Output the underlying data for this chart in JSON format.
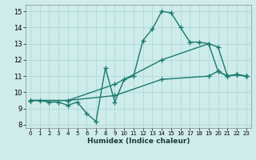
{
  "background_color": "#ceecea",
  "grid_color": "#aed8d5",
  "line_color": "#1a7a6e",
  "marker": "+",
  "markersize": 4,
  "linewidth": 1.0,
  "xlabel": "Humidex (Indice chaleur)",
  "xlim": [
    -0.5,
    23.5
  ],
  "ylim": [
    7.8,
    15.4
  ],
  "xticks": [
    0,
    1,
    2,
    3,
    4,
    5,
    6,
    7,
    8,
    9,
    10,
    11,
    12,
    13,
    14,
    15,
    16,
    17,
    18,
    19,
    20,
    21,
    22,
    23
  ],
  "yticks": [
    8,
    9,
    10,
    11,
    12,
    13,
    14,
    15
  ],
  "series": [
    {
      "x": [
        0,
        1,
        2,
        3,
        4,
        5,
        6,
        7,
        8,
        9,
        10,
        11,
        12,
        13,
        14,
        15,
        16,
        17,
        18,
        19,
        20,
        21,
        22,
        23
      ],
      "y": [
        9.5,
        9.5,
        9.4,
        9.4,
        9.2,
        9.4,
        8.7,
        8.2,
        11.5,
        9.4,
        10.8,
        11.0,
        13.2,
        13.9,
        15.0,
        14.9,
        14.0,
        13.1,
        13.1,
        13.0,
        12.8,
        11.0,
        11.1,
        11.0
      ]
    },
    {
      "x": [
        0,
        4,
        9,
        14,
        19,
        20,
        21,
        22,
        23
      ],
      "y": [
        9.5,
        9.5,
        10.5,
        12.0,
        13.0,
        11.3,
        11.0,
        11.1,
        11.0
      ]
    },
    {
      "x": [
        0,
        4,
        9,
        14,
        19,
        20,
        21,
        22,
        23
      ],
      "y": [
        9.5,
        9.5,
        9.8,
        10.8,
        11.0,
        11.3,
        11.0,
        11.1,
        11.0
      ]
    }
  ]
}
